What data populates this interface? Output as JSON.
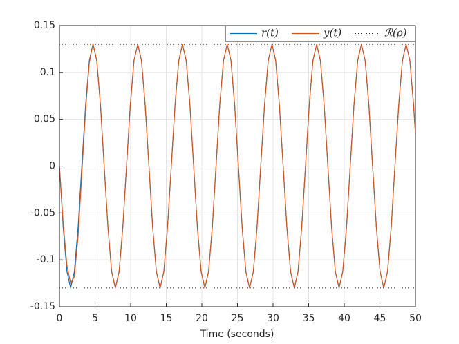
{
  "chart_data": {
    "type": "line",
    "xlabel": "Time (seconds)",
    "x": [
      0,
      0.52,
      1.05,
      1.57,
      2.09,
      2.62,
      3.14,
      3.67,
      4.19,
      4.71,
      5.24,
      5.76,
      6.28,
      6.81,
      7.33,
      7.85,
      8.38,
      8.9,
      9.42,
      9.95,
      10.47,
      11.0,
      11.52,
      12.04,
      12.57,
      13.09,
      13.61,
      14.14,
      14.66,
      15.18,
      15.71,
      16.23,
      16.76,
      17.28,
      17.8,
      18.33,
      18.85,
      19.37,
      19.9,
      20.42,
      20.94,
      21.47,
      21.99,
      22.51,
      23.04,
      23.56,
      24.09,
      24.61,
      25.13,
      25.66,
      26.18,
      26.7,
      27.23,
      27.75,
      28.27,
      28.8,
      29.32,
      29.85,
      30.37,
      30.89,
      31.42,
      31.94,
      32.46,
      32.99,
      33.51,
      34.03,
      34.56,
      35.08,
      35.6,
      36.13,
      36.65,
      37.18,
      37.7,
      38.22,
      38.75,
      39.27,
      39.79,
      40.32,
      40.84,
      41.36,
      41.89,
      42.41,
      42.94,
      43.46,
      43.98,
      44.51,
      45.03,
      45.55,
      46.08,
      46.6,
      47.12,
      47.65,
      48.17,
      48.69,
      49.22,
      49.74,
      50
    ],
    "series": [
      {
        "name": "r(t)",
        "color": "#0072bd",
        "values": [
          0,
          -0.065,
          -0.1126,
          -0.13,
          -0.1126,
          -0.065,
          0,
          0.065,
          0.1126,
          0.13,
          0.1126,
          0.065,
          0,
          -0.065,
          -0.1126,
          -0.13,
          -0.1126,
          -0.065,
          0,
          0.065,
          0.1126,
          0.13,
          0.1126,
          0.065,
          0,
          -0.065,
          -0.1126,
          -0.13,
          -0.1126,
          -0.065,
          0,
          0.065,
          0.1126,
          0.13,
          0.1126,
          0.065,
          0,
          -0.065,
          -0.1126,
          -0.13,
          -0.1126,
          -0.065,
          0,
          0.065,
          0.1126,
          0.13,
          0.1126,
          0.065,
          0,
          -0.065,
          -0.1126,
          -0.13,
          -0.1126,
          -0.065,
          0,
          0.065,
          0.1126,
          0.13,
          0.1126,
          0.065,
          0,
          -0.065,
          -0.1126,
          -0.13,
          -0.1126,
          -0.065,
          0,
          0.065,
          0.1126,
          0.13,
          0.1126,
          0.065,
          0,
          -0.065,
          -0.1126,
          -0.13,
          -0.1126,
          -0.065,
          0,
          0.065,
          0.1126,
          0.13,
          0.1126,
          0.065,
          0,
          -0.065,
          -0.1126,
          -0.13,
          -0.1126,
          -0.065,
          0,
          0.065,
          0.1126,
          0.13,
          0.1126,
          0.065,
          0.0341
        ]
      },
      {
        "name": "y(t)",
        "color": "#d95319",
        "values": [
          0,
          -0.06,
          -0.106,
          -0.125,
          -0.118,
          -0.075,
          -0.008,
          0.06,
          0.11,
          0.131,
          0.1126,
          0.065,
          0,
          -0.065,
          -0.1126,
          -0.13,
          -0.1126,
          -0.065,
          0,
          0.065,
          0.1126,
          0.13,
          0.1126,
          0.065,
          0,
          -0.065,
          -0.1126,
          -0.13,
          -0.1126,
          -0.065,
          0,
          0.065,
          0.1126,
          0.13,
          0.1126,
          0.065,
          0,
          -0.065,
          -0.1126,
          -0.13,
          -0.1126,
          -0.065,
          0,
          0.065,
          0.1126,
          0.13,
          0.1126,
          0.065,
          0,
          -0.065,
          -0.1126,
          -0.13,
          -0.1126,
          -0.065,
          0,
          0.065,
          0.1126,
          0.13,
          0.1126,
          0.065,
          0,
          -0.065,
          -0.1126,
          -0.13,
          -0.1126,
          -0.065,
          0,
          0.065,
          0.1126,
          0.13,
          0.1126,
          0.065,
          0,
          -0.065,
          -0.1126,
          -0.13,
          -0.1126,
          -0.065,
          0,
          0.065,
          0.1126,
          0.13,
          0.1126,
          0.065,
          0,
          -0.065,
          -0.1126,
          -0.13,
          -0.1126,
          -0.065,
          0,
          0.065,
          0.1126,
          0.13,
          0.1126,
          0.065,
          0.0341
        ]
      }
    ],
    "bound": {
      "name": "ℛ(ρ)",
      "color": "#262626",
      "values": [
        0.13,
        -0.13
      ]
    },
    "xlim": [
      0,
      50
    ],
    "xticks": [
      0,
      5,
      10,
      15,
      20,
      25,
      30,
      35,
      40,
      45,
      50
    ],
    "ylim": [
      -0.15,
      0.15
    ],
    "yticks": [
      -0.15,
      -0.1,
      -0.05,
      0,
      0.05,
      0.1,
      0.15
    ],
    "grid": true,
    "legend": "top-right"
  }
}
